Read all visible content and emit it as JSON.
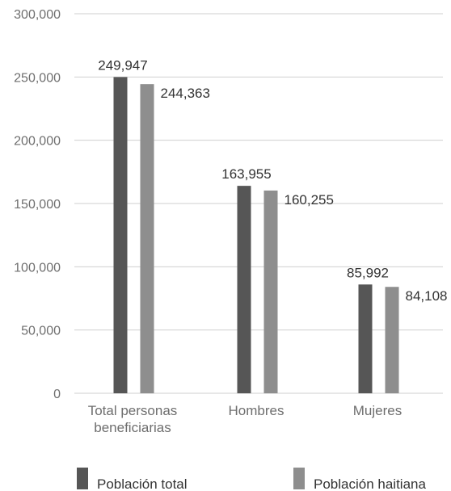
{
  "chart_data": {
    "type": "bar",
    "categories": [
      [
        "Total personas",
        "beneficiarias"
      ],
      [
        "Hombres"
      ],
      [
        "Mujeres"
      ]
    ],
    "series": [
      {
        "name": "Población total",
        "values": [
          249947,
          163955,
          85992
        ],
        "labels": [
          "249,947",
          "163,955",
          "85,992"
        ],
        "color": "#565656"
      },
      {
        "name": "Población haitiana",
        "values": [
          244363,
          160255,
          84108
        ],
        "labels": [
          "244,363",
          "160,255",
          "84,108"
        ],
        "color": "#8e8e8e"
      }
    ],
    "ylim": [
      0,
      300000
    ],
    "yticks": [
      0,
      50000,
      100000,
      150000,
      200000,
      250000,
      300000
    ],
    "ytick_labels": [
      "0",
      "50,000",
      "100,000",
      "150,000",
      "200,000",
      "250,000",
      "300,000"
    ],
    "grid": true,
    "legend": "bottom",
    "gridline_color": "#cfcfcf",
    "xlabel": "",
    "ylabel": "",
    "title": ""
  }
}
